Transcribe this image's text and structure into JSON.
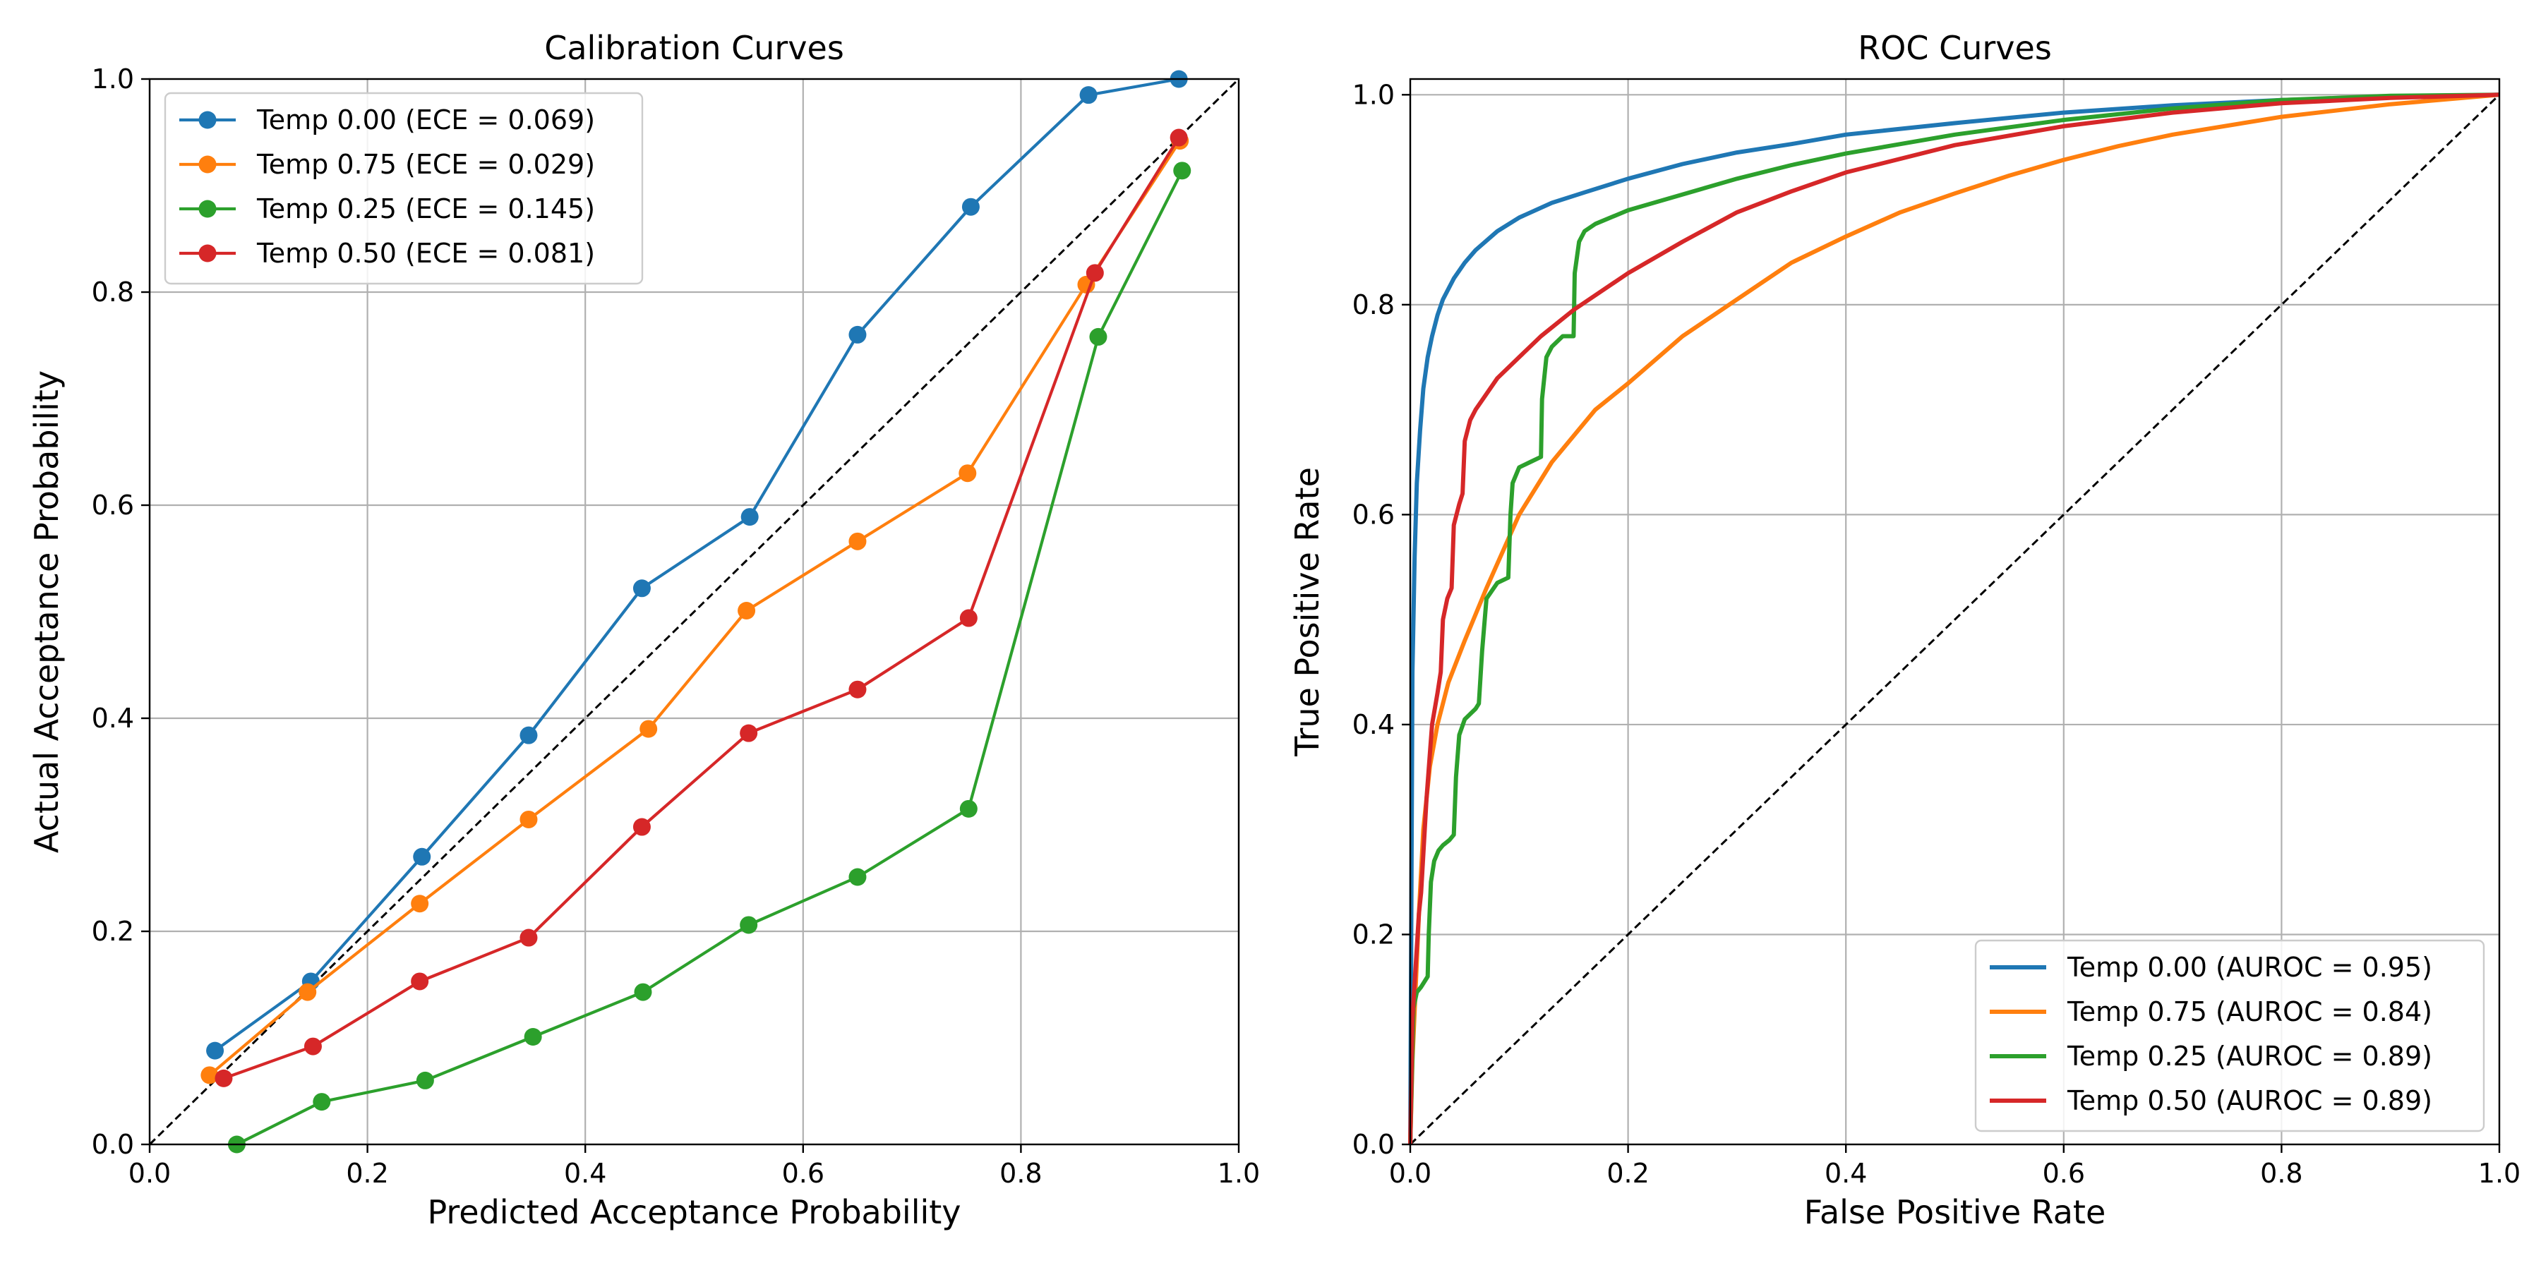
{
  "chart_data": [
    {
      "type": "line",
      "title": "Calibration Curves",
      "xlabel": "Predicted Acceptance Probability",
      "ylabel": "Actual Acceptance Probability",
      "xlim": [
        0,
        1
      ],
      "ylim": [
        0,
        1
      ],
      "xticks": [
        "0.0",
        "0.2",
        "0.4",
        "0.6",
        "0.8",
        "1.0"
      ],
      "yticks": [
        "0.0",
        "0.2",
        "0.4",
        "0.6",
        "0.8",
        "1.0"
      ],
      "grid": true,
      "legend_position": "upper-left",
      "markers": true,
      "series": [
        {
          "name": "Temp 0.00 (ECE = 0.069)",
          "color": "#1f77b4",
          "x": [
            0.06,
            0.148,
            0.25,
            0.348,
            0.452,
            0.551,
            0.65,
            0.754,
            0.862,
            0.945
          ],
          "y": [
            0.088,
            0.153,
            0.27,
            0.384,
            0.522,
            0.589,
            0.76,
            0.88,
            0.985,
            1.0
          ]
        },
        {
          "name": "Temp 0.75 (ECE = 0.029)",
          "color": "#ff7f0e",
          "x": [
            0.055,
            0.145,
            0.248,
            0.348,
            0.458,
            0.548,
            0.65,
            0.751,
            0.86,
            0.946
          ],
          "y": [
            0.065,
            0.143,
            0.226,
            0.305,
            0.39,
            0.501,
            0.566,
            0.63,
            0.807,
            0.942
          ]
        },
        {
          "name": "Temp 0.25 (ECE = 0.145)",
          "color": "#2ca02c",
          "x": [
            0.08,
            0.158,
            0.253,
            0.352,
            0.453,
            0.55,
            0.65,
            0.752,
            0.871,
            0.948
          ],
          "y": [
            0.0,
            0.04,
            0.06,
            0.101,
            0.143,
            0.206,
            0.251,
            0.315,
            0.758,
            0.914
          ]
        },
        {
          "name": "Temp 0.50 (ECE = 0.081)",
          "color": "#d62728",
          "x": [
            0.068,
            0.15,
            0.248,
            0.348,
            0.452,
            0.55,
            0.65,
            0.752,
            0.868,
            0.945
          ],
          "y": [
            0.062,
            0.092,
            0.153,
            0.194,
            0.298,
            0.386,
            0.427,
            0.494,
            0.818,
            0.945
          ]
        }
      ]
    },
    {
      "type": "line",
      "title": "ROC Curves",
      "xlabel": "False Positive Rate",
      "ylabel": "True Positive Rate",
      "xlim": [
        0,
        1
      ],
      "ylim": [
        0,
        1.015
      ],
      "xticks": [
        "0.0",
        "0.2",
        "0.4",
        "0.6",
        "0.8",
        "1.0"
      ],
      "yticks": [
        "0.0",
        "0.2",
        "0.4",
        "0.6",
        "0.8",
        "1.0"
      ],
      "grid": true,
      "legend_position": "lower-right",
      "markers": false,
      "series": [
        {
          "name": "Temp 0.00 (AUROC = 0.95)",
          "color": "#1f77b4",
          "x": [
            0,
            0.002,
            0.004,
            0.006,
            0.009,
            0.012,
            0.016,
            0.02,
            0.025,
            0.03,
            0.04,
            0.05,
            0.06,
            0.08,
            0.1,
            0.13,
            0.16,
            0.2,
            0.25,
            0.3,
            0.35,
            0.4,
            0.5,
            0.6,
            0.7,
            0.8,
            0.9,
            1.0
          ],
          "y": [
            0,
            0.45,
            0.56,
            0.63,
            0.68,
            0.72,
            0.75,
            0.77,
            0.79,
            0.805,
            0.825,
            0.84,
            0.852,
            0.87,
            0.883,
            0.897,
            0.907,
            0.92,
            0.934,
            0.945,
            0.953,
            0.962,
            0.973,
            0.983,
            0.99,
            0.995,
            0.998,
            1.0
          ]
        },
        {
          "name": "Temp 0.75 (AUROC = 0.84)",
          "color": "#ff7f0e",
          "x": [
            0,
            0.002,
            0.005,
            0.008,
            0.012,
            0.018,
            0.025,
            0.035,
            0.05,
            0.07,
            0.1,
            0.13,
            0.17,
            0.2,
            0.25,
            0.3,
            0.35,
            0.4,
            0.45,
            0.5,
            0.55,
            0.6,
            0.65,
            0.7,
            0.8,
            0.9,
            1.0
          ],
          "y": [
            0,
            0.08,
            0.15,
            0.22,
            0.3,
            0.36,
            0.4,
            0.44,
            0.48,
            0.53,
            0.6,
            0.65,
            0.7,
            0.725,
            0.77,
            0.805,
            0.84,
            0.865,
            0.888,
            0.906,
            0.923,
            0.938,
            0.951,
            0.962,
            0.979,
            0.991,
            1.0
          ]
        },
        {
          "name": "Temp 0.25 (AUROC = 0.89)",
          "color": "#2ca02c",
          "x": [
            0,
            0.003,
            0.006,
            0.01,
            0.016,
            0.017,
            0.019,
            0.022,
            0.026,
            0.03,
            0.036,
            0.04,
            0.042,
            0.045,
            0.05,
            0.055,
            0.06,
            0.063,
            0.066,
            0.07,
            0.08,
            0.09,
            0.092,
            0.094,
            0.1,
            0.11,
            0.12,
            0.121,
            0.125,
            0.13,
            0.14,
            0.15,
            0.151,
            0.155,
            0.16,
            0.17,
            0.2,
            0.25,
            0.3,
            0.35,
            0.4,
            0.5,
            0.6,
            0.7,
            0.8,
            0.9,
            1.0
          ],
          "y": [
            0,
            0.13,
            0.145,
            0.15,
            0.16,
            0.2,
            0.25,
            0.27,
            0.28,
            0.285,
            0.29,
            0.295,
            0.35,
            0.39,
            0.405,
            0.41,
            0.415,
            0.42,
            0.47,
            0.52,
            0.535,
            0.54,
            0.6,
            0.63,
            0.645,
            0.65,
            0.655,
            0.71,
            0.75,
            0.76,
            0.77,
            0.77,
            0.83,
            0.86,
            0.87,
            0.877,
            0.89,
            0.905,
            0.92,
            0.933,
            0.944,
            0.962,
            0.976,
            0.987,
            0.995,
            0.999,
            1.0
          ]
        },
        {
          "name": "Temp 0.50 (AUROC = 0.89)",
          "color": "#d62728",
          "x": [
            0,
            0.002,
            0.005,
            0.008,
            0.01,
            0.015,
            0.02,
            0.025,
            0.028,
            0.03,
            0.034,
            0.038,
            0.04,
            0.045,
            0.048,
            0.05,
            0.055,
            0.06,
            0.07,
            0.08,
            0.1,
            0.12,
            0.15,
            0.2,
            0.25,
            0.3,
            0.35,
            0.4,
            0.5,
            0.6,
            0.7,
            0.8,
            0.9,
            1.0
          ],
          "y": [
            0,
            0.12,
            0.17,
            0.22,
            0.24,
            0.33,
            0.4,
            0.43,
            0.45,
            0.5,
            0.52,
            0.53,
            0.59,
            0.61,
            0.62,
            0.67,
            0.69,
            0.7,
            0.715,
            0.73,
            0.75,
            0.77,
            0.795,
            0.83,
            0.86,
            0.888,
            0.908,
            0.926,
            0.952,
            0.97,
            0.983,
            0.992,
            0.997,
            1.0
          ]
        }
      ]
    }
  ]
}
